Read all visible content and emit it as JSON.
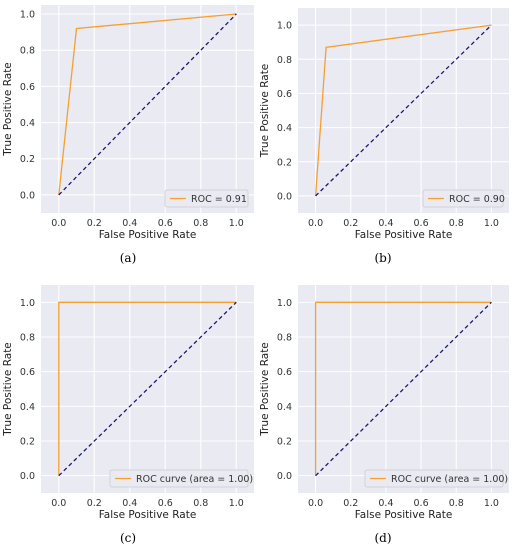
{
  "chart_data": [
    {
      "type": "line",
      "caption": "(a)",
      "xlabel": "False Positive Rate",
      "ylabel": "True Positive Rate",
      "xlim": [
        -0.1,
        1.1
      ],
      "ylim": [
        -0.1,
        1.05
      ],
      "xticks": [
        "0.0",
        "0.2",
        "0.4",
        "0.6",
        "0.8",
        "1.0"
      ],
      "yticks": [
        "0.0",
        "0.2",
        "0.4",
        "0.6",
        "0.8",
        "1.0"
      ],
      "grid": true,
      "legend_position": "lower-right",
      "series": [
        {
          "name": "ROC = 0.91",
          "color": "#f5a030",
          "style": "solid",
          "x": [
            0.0,
            0.1,
            1.0
          ],
          "y": [
            0.0,
            0.92,
            1.0
          ]
        },
        {
          "color": "#1a1a6e",
          "style": "dashed",
          "x": [
            0.0,
            1.0
          ],
          "y": [
            0.0,
            1.0
          ]
        }
      ]
    },
    {
      "type": "line",
      "caption": "(b)",
      "xlabel": "False Positive Rate",
      "ylabel": "True Positive Rate",
      "xlim": [
        -0.1,
        1.1
      ],
      "ylim": [
        -0.1,
        1.1
      ],
      "xticks": [
        "0.0",
        "0.2",
        "0.4",
        "0.6",
        "0.8",
        "1.0"
      ],
      "yticks": [
        "0.0",
        "0.2",
        "0.4",
        "0.6",
        "0.8",
        "1.0"
      ],
      "grid": true,
      "legend_position": "lower-right",
      "series": [
        {
          "name": "ROC = 0.90",
          "color": "#f5a030",
          "style": "solid",
          "x": [
            0.0,
            0.06,
            1.0
          ],
          "y": [
            0.0,
            0.87,
            1.0
          ]
        },
        {
          "color": "#1a1a6e",
          "style": "dashed",
          "x": [
            0.0,
            1.0
          ],
          "y": [
            0.0,
            1.0
          ]
        }
      ]
    },
    {
      "type": "line",
      "caption": "(c)",
      "xlabel": "False Positive Rate",
      "ylabel": "True Positive Rate",
      "xlim": [
        -0.1,
        1.1
      ],
      "ylim": [
        -0.1,
        1.1
      ],
      "xticks": [
        "0.0",
        "0.2",
        "0.4",
        "0.6",
        "0.8",
        "1.0"
      ],
      "yticks": [
        "0.0",
        "0.2",
        "0.4",
        "0.6",
        "0.8",
        "1.0"
      ],
      "grid": true,
      "legend_position": "lower-right",
      "series": [
        {
          "name": "ROC curve (area = 1.00)",
          "color": "#f5a030",
          "style": "solid",
          "x": [
            0.0,
            0.0,
            1.0
          ],
          "y": [
            0.0,
            1.0,
            1.0
          ]
        },
        {
          "color": "#1a1a6e",
          "style": "dashed",
          "x": [
            0.0,
            1.0
          ],
          "y": [
            0.0,
            1.0
          ]
        }
      ]
    },
    {
      "type": "line",
      "caption": "(d)",
      "xlabel": "False Positive Rate",
      "ylabel": "True Positive Rate",
      "xlim": [
        -0.1,
        1.1
      ],
      "ylim": [
        -0.1,
        1.1
      ],
      "xticks": [
        "0.0",
        "0.2",
        "0.4",
        "0.6",
        "0.8",
        "1.0"
      ],
      "yticks": [
        "0.0",
        "0.2",
        "0.4",
        "0.6",
        "0.8",
        "1.0"
      ],
      "grid": true,
      "legend_position": "lower-right",
      "series": [
        {
          "name": "ROC curve (area = 1.00)",
          "color": "#f5a030",
          "style": "solid",
          "x": [
            0.0,
            0.0,
            1.0
          ],
          "y": [
            0.0,
            1.0,
            1.0
          ]
        },
        {
          "color": "#1a1a6e",
          "style": "dashed",
          "x": [
            0.0,
            1.0
          ],
          "y": [
            0.0,
            1.0
          ]
        }
      ]
    }
  ]
}
